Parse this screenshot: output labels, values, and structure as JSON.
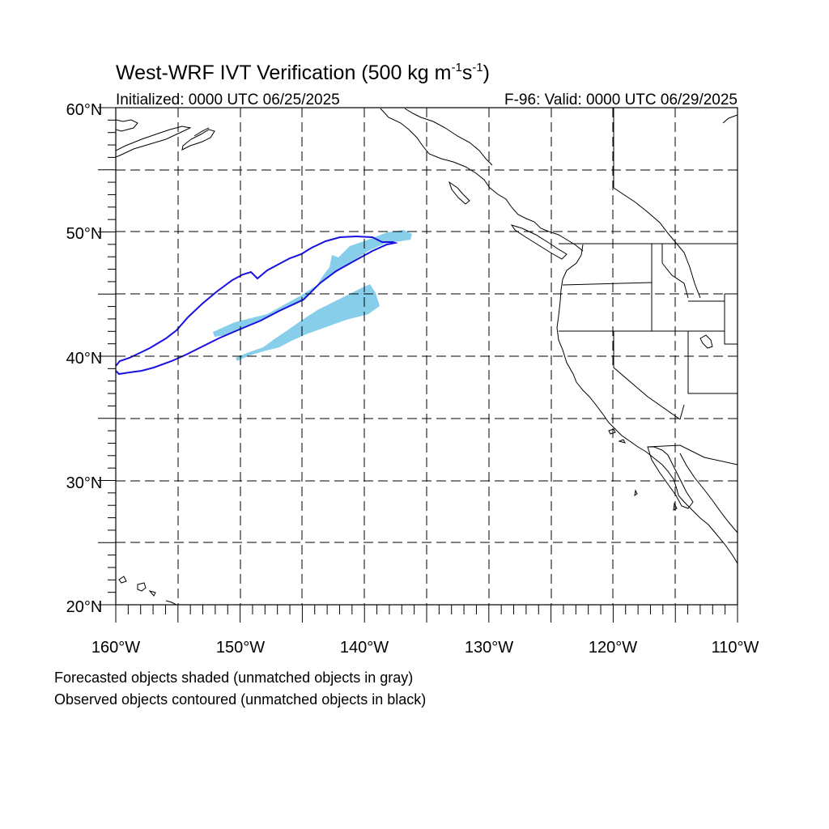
{
  "title": {
    "main": "West-WRF IVT Verification (500 kg m",
    "unit_exp_1": "-1",
    "unit_mid": "s",
    "unit_exp_2": "-1",
    "unit_close": ")"
  },
  "initialized": "Initialized: 0000 UTC 06/25/2025",
  "valid": "F-96: Valid: 0000 UTC 06/29/2025",
  "lat_labels": [
    "60°N",
    "50°N",
    "40°N",
    "30°N",
    "20°N"
  ],
  "lon_labels": [
    "160°W",
    "150°W",
    "140°W",
    "130°W",
    "120°W",
    "110°W"
  ],
  "caption": {
    "line1": "Forecasted objects shaded (unmatched objects in gray)",
    "line2": "Observed objects contoured (unmatched objects in black)"
  },
  "colors": {
    "forecast_fill": "#87ceeb",
    "observed_contour": "#1a10e0",
    "coastline": "#000000",
    "grid": "#000000"
  },
  "map": {
    "lon_range": [
      -160,
      -110
    ],
    "lat_range": [
      20,
      60
    ],
    "grid_spacing_deg": 5,
    "projection": "cylindrical equidistant"
  }
}
